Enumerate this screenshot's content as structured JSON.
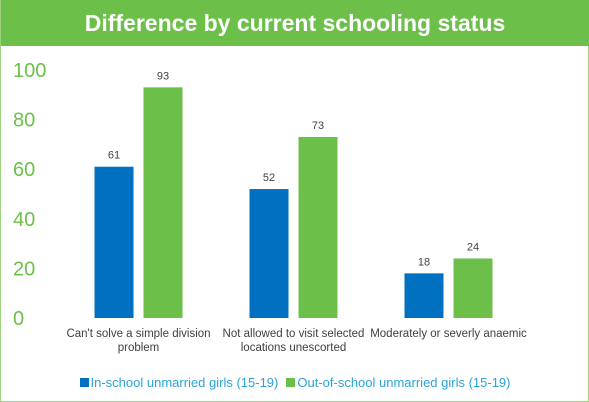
{
  "chart_data": {
    "type": "bar",
    "title": "Difference by current schooling status",
    "categories": [
      [
        "Can't solve a simple division",
        "problem"
      ],
      [
        "Not allowed to visit selected",
        "locations unescorted"
      ],
      [
        "Moderately or severly anaemic"
      ]
    ],
    "series": [
      {
        "name": "In-school unmarried girls (15-19)",
        "values": [
          61,
          52,
          18
        ],
        "color": "#0070c0"
      },
      {
        "name": "Out-of-school unmarried girls (15-19)",
        "values": [
          93,
          73,
          24
        ],
        "color": "#6cc04a"
      }
    ],
    "ylim": [
      0,
      100
    ],
    "yticks": [
      0,
      20,
      40,
      60,
      80,
      100
    ],
    "grid": false,
    "legend": "bottom",
    "colors": {
      "title_band": "#6cc04a",
      "axis_text": "#6cc04a",
      "legend_text": "#2aa3d8",
      "data_label": "#404040"
    }
  }
}
